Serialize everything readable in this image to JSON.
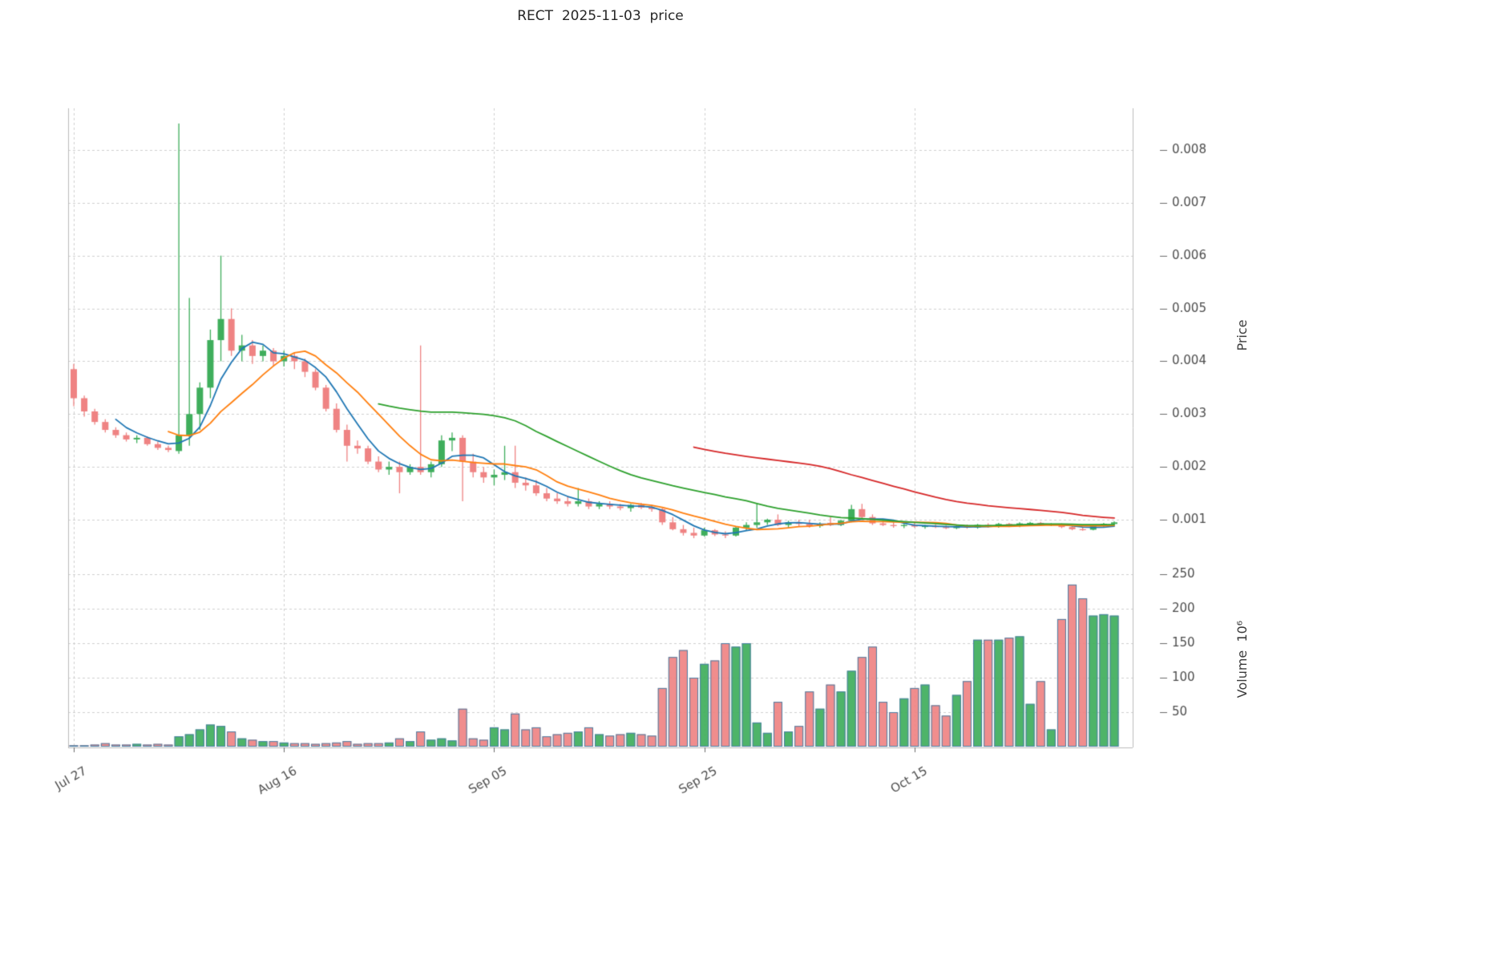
{
  "title": "RECT  2025-11-03  price",
  "chart_data": {
    "type": "candlestick",
    "title": "RECT  2025-11-03  price",
    "start_date": "2025-07-27",
    "end_date": "2025-11-03",
    "num_days": 100,
    "price_unit": 0.0001,
    "x_ticks": [
      {
        "index": 0,
        "label": "Jul 27"
      },
      {
        "index": 20,
        "label": "Aug 16"
      },
      {
        "index": 40,
        "label": "Sep 05"
      },
      {
        "index": 60,
        "label": "Sep 25"
      },
      {
        "index": 80,
        "label": "Oct 15"
      }
    ],
    "price_axis": {
      "label": "Price",
      "ticks": [
        0.001,
        0.002,
        0.003,
        0.004,
        0.005,
        0.006,
        0.007,
        0.008
      ],
      "min": 0.00035,
      "max": 0.0088,
      "grid": true
    },
    "volume_axis": {
      "label": "Volume  10⁶",
      "ticks": [
        50,
        100,
        150,
        200,
        250
      ],
      "min": 0,
      "max": 270,
      "grid": true
    },
    "ohlc": [
      [
        38.5,
        39.5,
        31.5,
        33
      ],
      [
        33,
        33.5,
        29.5,
        30.5
      ],
      [
        30.5,
        31,
        28,
        28.5
      ],
      [
        28.5,
        29,
        26.5,
        27
      ],
      [
        27,
        27.5,
        25.5,
        26
      ],
      [
        26,
        26.5,
        24.8,
        25.2
      ],
      [
        25.2,
        26,
        24.5,
        25.5
      ],
      [
        25.5,
        25.8,
        24,
        24.3
      ],
      [
        24.3,
        24.8,
        23.2,
        23.6
      ],
      [
        23.6,
        24,
        22.8,
        23.2
      ],
      [
        23,
        85,
        22.5,
        26
      ],
      [
        26,
        52,
        24,
        30
      ],
      [
        30,
        36,
        27,
        35
      ],
      [
        35,
        46,
        33,
        44
      ],
      [
        44,
        60,
        40,
        48
      ],
      [
        48,
        50,
        41,
        42
      ],
      [
        42,
        45,
        40,
        43
      ],
      [
        43,
        44,
        39.5,
        41
      ],
      [
        41,
        43,
        40,
        42
      ],
      [
        42,
        42.5,
        39,
        40
      ],
      [
        40,
        42,
        39,
        41
      ],
      [
        41,
        41.5,
        38.5,
        40
      ],
      [
        40,
        40.5,
        37,
        38
      ],
      [
        38,
        38.5,
        34.5,
        35
      ],
      [
        35,
        35.5,
        30.5,
        31
      ],
      [
        31,
        32,
        26.5,
        27
      ],
      [
        27,
        28,
        21,
        24
      ],
      [
        24,
        25,
        22.5,
        23.5
      ],
      [
        23.5,
        24,
        20.5,
        21
      ],
      [
        21,
        22,
        19,
        19.5
      ],
      [
        19.5,
        21,
        18.5,
        20
      ],
      [
        20,
        21,
        15,
        19
      ],
      [
        19,
        20.5,
        18.5,
        20
      ],
      [
        20,
        43,
        18.5,
        19
      ],
      [
        19,
        21,
        18,
        20.5
      ],
      [
        20.5,
        26,
        20,
        25
      ],
      [
        25,
        26.5,
        23,
        25.5
      ],
      [
        25.5,
        26,
        13.5,
        21
      ],
      [
        21,
        22.5,
        18,
        19
      ],
      [
        19,
        20,
        17,
        18
      ],
      [
        18,
        19.5,
        16.5,
        18.5
      ],
      [
        18.5,
        24,
        17.5,
        19
      ],
      [
        19,
        24,
        16,
        17
      ],
      [
        17,
        18,
        15.5,
        16.5
      ],
      [
        16.5,
        17.5,
        14.5,
        15
      ],
      [
        15,
        16,
        13.5,
        14
      ],
      [
        14,
        15,
        13,
        13.5
      ],
      [
        13.5,
        14.5,
        12.5,
        13
      ],
      [
        13,
        16,
        12.5,
        13.5
      ],
      [
        13.5,
        14,
        12,
        12.5
      ],
      [
        12.5,
        13.5,
        12,
        13
      ],
      [
        13,
        13.5,
        12,
        12.5
      ],
      [
        12.5,
        13,
        11.8,
        12.2
      ],
      [
        12.2,
        13,
        11.5,
        12.8
      ],
      [
        12.8,
        13.2,
        12,
        12.3
      ],
      [
        12.3,
        12.8,
        11.5,
        12
      ],
      [
        12,
        12.2,
        9,
        9.5
      ],
      [
        9.5,
        10.5,
        8,
        8.2
      ],
      [
        8.2,
        9,
        7,
        7.5
      ],
      [
        7.5,
        8.5,
        6.5,
        7
      ],
      [
        7,
        8.5,
        6.8,
        8
      ],
      [
        8,
        8.2,
        6.9,
        7.2
      ],
      [
        7.2,
        7.8,
        6.5,
        7
      ],
      [
        7,
        8.8,
        6.8,
        8.5
      ],
      [
        8.5,
        9.5,
        8,
        9
      ],
      [
        9,
        13,
        8.5,
        9.5
      ],
      [
        9.5,
        10.2,
        9,
        10
      ],
      [
        10,
        11,
        8.8,
        9
      ],
      [
        9,
        9.8,
        8.5,
        9.5
      ],
      [
        9.5,
        10,
        8.8,
        9.2
      ],
      [
        9.2,
        10,
        8.5,
        8.8
      ],
      [
        8.8,
        9.5,
        8.5,
        9.2
      ],
      [
        9.4,
        10.5,
        8.8,
        9
      ],
      [
        9,
        10,
        8.8,
        9.8
      ],
      [
        9.8,
        12.8,
        9.5,
        12
      ],
      [
        12,
        13,
        10.2,
        10.5
      ],
      [
        10.5,
        11,
        9,
        9.3
      ],
      [
        9.3,
        9.8,
        8.8,
        9
      ],
      [
        9,
        9.5,
        8.5,
        8.8
      ],
      [
        8.8,
        9.2,
        8.4,
        9
      ],
      [
        9,
        9.4,
        8.5,
        8.7
      ],
      [
        8.7,
        9,
        8.3,
        8.8
      ],
      [
        8.8,
        9.1,
        8.4,
        8.6
      ],
      [
        8.6,
        8.9,
        8.2,
        8.4
      ],
      [
        8.4,
        8.9,
        8.2,
        8.8
      ],
      [
        8.8,
        9.1,
        8.3,
        8.5
      ],
      [
        8.5,
        9.2,
        8.3,
        9
      ],
      [
        9,
        9.3,
        8.5,
        8.7
      ],
      [
        8.7,
        9.4,
        8.5,
        9.2
      ],
      [
        9.2,
        9.4,
        8.6,
        8.8
      ],
      [
        8.8,
        9.5,
        8.6,
        9.3
      ],
      [
        9.3,
        9.6,
        9,
        9.4
      ],
      [
        9.4,
        9.6,
        8.8,
        9
      ],
      [
        9,
        9.3,
        8.8,
        9.1
      ],
      [
        9.1,
        9.3,
        8.4,
        8.6
      ],
      [
        8.6,
        8.8,
        8,
        8.2
      ],
      [
        8.2,
        8.5,
        7.9,
        8.1
      ],
      [
        8.1,
        9,
        8,
        8.8
      ],
      [
        8.8,
        9.4,
        8.6,
        9.2
      ],
      [
        9.2,
        9.7,
        9,
        9.5
      ]
    ],
    "volume_millions": [
      2,
      2,
      3,
      5,
      3,
      3,
      4,
      3,
      4,
      3,
      15,
      18,
      25,
      32,
      30,
      22,
      12,
      10,
      8,
      8,
      6,
      5,
      5,
      4,
      5,
      6,
      8,
      4,
      5,
      5,
      6,
      12,
      8,
      22,
      10,
      12,
      9,
      55,
      12,
      10,
      28,
      25,
      48,
      25,
      28,
      15,
      18,
      20,
      22,
      28,
      18,
      16,
      18,
      20,
      18,
      16,
      85,
      130,
      140,
      100,
      120,
      125,
      150,
      145,
      150,
      35,
      20,
      65,
      22,
      30,
      80,
      55,
      90,
      80,
      110,
      130,
      145,
      65,
      50,
      70,
      85,
      90,
      60,
      45,
      75,
      95,
      155,
      155,
      155,
      158,
      160,
      62,
      95,
      25,
      185,
      235,
      215,
      190,
      192,
      190
    ],
    "moving_averages": [
      {
        "name": "ma-short",
        "window": 5,
        "color": "#1f77b4"
      },
      {
        "name": "ma-mid",
        "window": 10,
        "color": "#ff7f0e"
      },
      {
        "name": "ma-long",
        "window": 30,
        "color": "#2ca02c"
      },
      {
        "name": "ma-longest",
        "window": 60,
        "color": "#d62728"
      }
    ],
    "colors": {
      "up": "#3fae5c",
      "down": "#ef8383",
      "volume_edge": "#4a7fa5",
      "grid": "#d0d0d0",
      "spine": "#bdbdbd",
      "tick_text": "#4d4d4d",
      "background": "#ffffff"
    }
  }
}
